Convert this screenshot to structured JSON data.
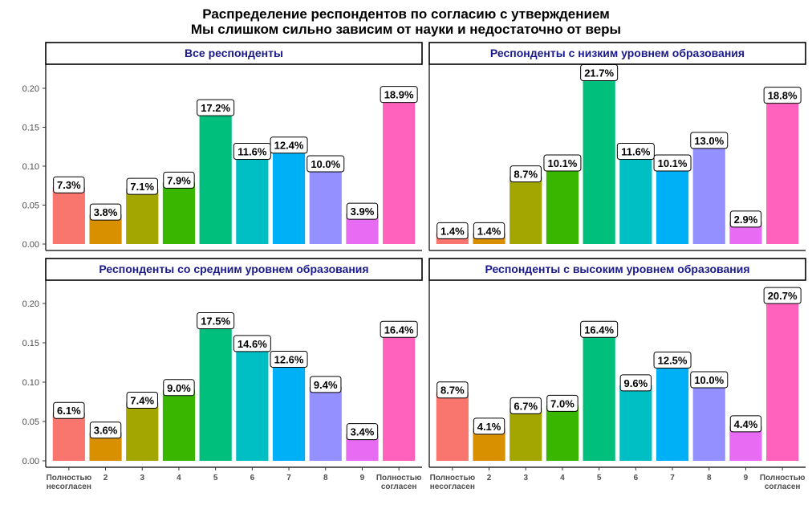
{
  "chart_data": {
    "type": "bar",
    "title": "Распределение респондентов по согласию с утверждением",
    "subtitle": "Мы слишком сильно зависим от науки и недостаточно от веры",
    "xlabel": "",
    "ylabel": "",
    "ylim": [
      0,
      0.22
    ],
    "yticks": [
      "0.00",
      "0.05",
      "0.10",
      "0.15",
      "0.20"
    ],
    "ytick_values": [
      0,
      0.05,
      0.1,
      0.15,
      0.2
    ],
    "categories": [
      [
        "Полностью",
        "несогласен"
      ],
      [
        "2"
      ],
      [
        "3"
      ],
      [
        "4"
      ],
      [
        "5"
      ],
      [
        "6"
      ],
      [
        "7"
      ],
      [
        "8"
      ],
      [
        "9"
      ],
      [
        "Полностью",
        "согласен"
      ]
    ],
    "colors": [
      "#F8766D",
      "#D89000",
      "#A3A500",
      "#39B600",
      "#00BF7D",
      "#00BFC4",
      "#00B0F6",
      "#9590FF",
      "#E76BF3",
      "#FF62BC"
    ],
    "grid": false,
    "panels": [
      {
        "title": "Все респонденты",
        "values": [
          0.073,
          0.038,
          0.071,
          0.079,
          0.172,
          0.116,
          0.124,
          0.1,
          0.039,
          0.189
        ],
        "labels": [
          "7.3%",
          "3.8%",
          "7.1%",
          "7.9%",
          "17.2%",
          "11.6%",
          "12.4%",
          "10.0%",
          "3.9%",
          "18.9%"
        ]
      },
      {
        "title": "Респонденты с низким уровнем образования",
        "values": [
          0.014,
          0.014,
          0.087,
          0.101,
          0.217,
          0.116,
          0.101,
          0.13,
          0.029,
          0.188
        ],
        "labels": [
          "1.4%",
          "1.4%",
          "8.7%",
          "10.1%",
          "21.7%",
          "11.6%",
          "10.1%",
          "13.0%",
          "2.9%",
          "18.8%"
        ]
      },
      {
        "title": "Респонденты со средним уровнем образования",
        "values": [
          0.061,
          0.036,
          0.074,
          0.09,
          0.175,
          0.146,
          0.126,
          0.094,
          0.034,
          0.164
        ],
        "labels": [
          "6.1%",
          "3.6%",
          "7.4%",
          "9.0%",
          "17.5%",
          "14.6%",
          "12.6%",
          "9.4%",
          "3.4%",
          "16.4%"
        ]
      },
      {
        "title": "Респонденты с высоким уровнем образования",
        "values": [
          0.087,
          0.041,
          0.067,
          0.07,
          0.164,
          0.096,
          0.125,
          0.1,
          0.044,
          0.207
        ],
        "labels": [
          "8.7%",
          "4.1%",
          "6.7%",
          "7.0%",
          "16.4%",
          "9.6%",
          "12.5%",
          "10.0%",
          "4.4%",
          "20.7%"
        ]
      }
    ]
  }
}
